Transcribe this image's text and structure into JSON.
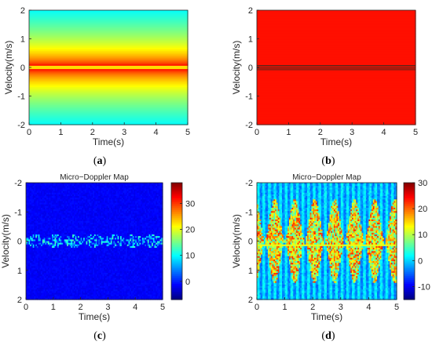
{
  "chart_data": [
    {
      "id": "a",
      "type": "heatmap",
      "title": "",
      "caption": "a",
      "xlabel": "Time(s)",
      "ylabel": "Velocity(m/s)",
      "xlim": [
        0,
        5
      ],
      "ylim": [
        -2,
        2
      ],
      "y_direction": "normal",
      "xticks": [
        0,
        1,
        2,
        3,
        4,
        5
      ],
      "yticks": [
        2,
        1,
        0,
        -1,
        -2
      ],
      "colormap": "jet",
      "colorbar": false,
      "grid": false,
      "pattern": "horizontal band, value peaks at velocity 0 and falls off toward ±2; constant along time"
    },
    {
      "id": "b",
      "type": "heatmap",
      "title": "",
      "caption": "b",
      "xlabel": "Time(s)",
      "ylabel": "Velocity(m/s)",
      "xlim": [
        0,
        5
      ],
      "ylim": [
        -2,
        2
      ],
      "y_direction": "normal",
      "xticks": [
        0,
        1,
        2,
        3,
        4,
        5
      ],
      "yticks": [
        2,
        1,
        0,
        -1,
        -2
      ],
      "colormap": "jet",
      "colorbar": false,
      "grid": false,
      "pattern": "uniform field with thin dark horizontal lines near velocity 0"
    },
    {
      "id": "c",
      "type": "heatmap",
      "title": "Micro−Doppler Map",
      "caption": "c",
      "xlabel": "Time(s)",
      "ylabel": "Velocity(m/s)",
      "xlim": [
        0,
        5
      ],
      "ylim": [
        -2,
        2
      ],
      "y_direction": "reversed",
      "xticks": [
        0,
        1,
        2,
        3,
        4,
        5
      ],
      "yticks": [
        -2,
        -1,
        0,
        1,
        2
      ],
      "colormap": "jet",
      "colorbar": true,
      "colorbar_range": [
        -7,
        38
      ],
      "colorbar_ticks": [
        0,
        10,
        20,
        30
      ],
      "grid": false,
      "pattern": "faint periodic micro-Doppler signatures confined near velocity 0"
    },
    {
      "id": "d",
      "type": "heatmap",
      "title": "Micro−Doppler Map",
      "caption": "d",
      "xlabel": "Time(s)",
      "ylabel": "Velocity(m/s)",
      "xlim": [
        0,
        5
      ],
      "ylim": [
        -2,
        2
      ],
      "y_direction": "reversed",
      "xticks": [
        0,
        1,
        2,
        3,
        4,
        5
      ],
      "yticks": [
        -2,
        -1,
        0,
        1,
        2
      ],
      "colormap": "jet",
      "colorbar": true,
      "colorbar_range": [
        -15,
        30
      ],
      "colorbar_ticks": [
        -10,
        0,
        10,
        20,
        30
      ],
      "grid": false,
      "pattern": "strong periodic micro-Doppler bursts spanning roughly -1.5 to 1.5 m/s, about 7 cycles over 5 s, with vertical striping"
    }
  ]
}
